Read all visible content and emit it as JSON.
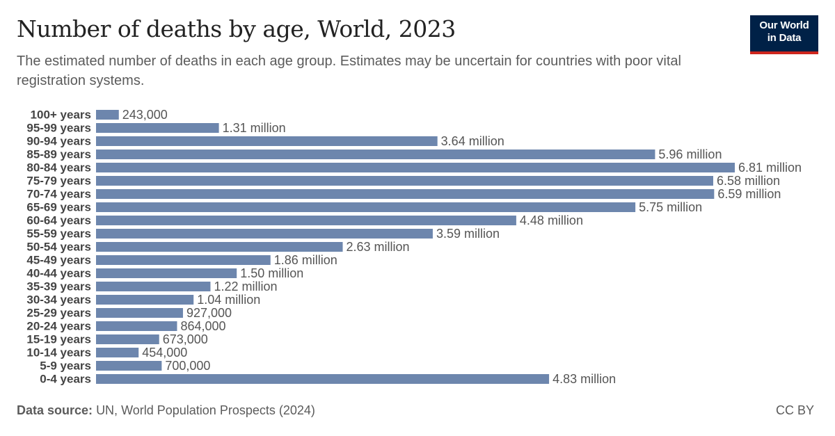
{
  "header": {
    "title": "Number of deaths by age, World, 2023",
    "subtitle": "The estimated number of deaths in each age group. Estimates may be uncertain for countries with poor vital registration systems."
  },
  "logo": {
    "line1": "Our World",
    "line2": "in Data"
  },
  "footer": {
    "source_label": "Data source:",
    "source_text": "UN, World Population Prospects (2024)",
    "license": "CC BY"
  },
  "colors": {
    "bar": "#6d86ad",
    "logo_bg": "#002147",
    "logo_accent": "#ce261e"
  },
  "chart_data": {
    "type": "bar",
    "orientation": "horizontal",
    "title": "Number of deaths by age, World, 2023",
    "categories": [
      "100+ years",
      "95-99 years",
      "90-94 years",
      "85-89 years",
      "80-84 years",
      "75-79 years",
      "70-74 years",
      "65-69 years",
      "60-64 years",
      "55-59 years",
      "50-54 years",
      "45-49 years",
      "40-44 years",
      "35-39 years",
      "30-34 years",
      "25-29 years",
      "20-24 years",
      "15-19 years",
      "10-14 years",
      "5-9 years",
      "0-4 years"
    ],
    "values": [
      243000,
      1310000,
      3640000,
      5960000,
      6810000,
      6580000,
      6590000,
      5750000,
      4480000,
      3590000,
      2630000,
      1860000,
      1500000,
      1220000,
      1040000,
      927000,
      864000,
      673000,
      454000,
      700000,
      4830000
    ],
    "value_labels": [
      "243,000",
      "1.31 million",
      "3.64 million",
      "5.96 million",
      "6.81 million",
      "6.58 million",
      "6.59 million",
      "5.75 million",
      "4.48 million",
      "3.59 million",
      "2.63 million",
      "1.86 million",
      "1.50 million",
      "1.22 million",
      "1.04 million",
      "927,000",
      "864,000",
      "673,000",
      "454,000",
      "700,000",
      "4.83 million"
    ],
    "xlim": [
      0,
      6810000
    ],
    "grid": false,
    "legend": "none"
  }
}
